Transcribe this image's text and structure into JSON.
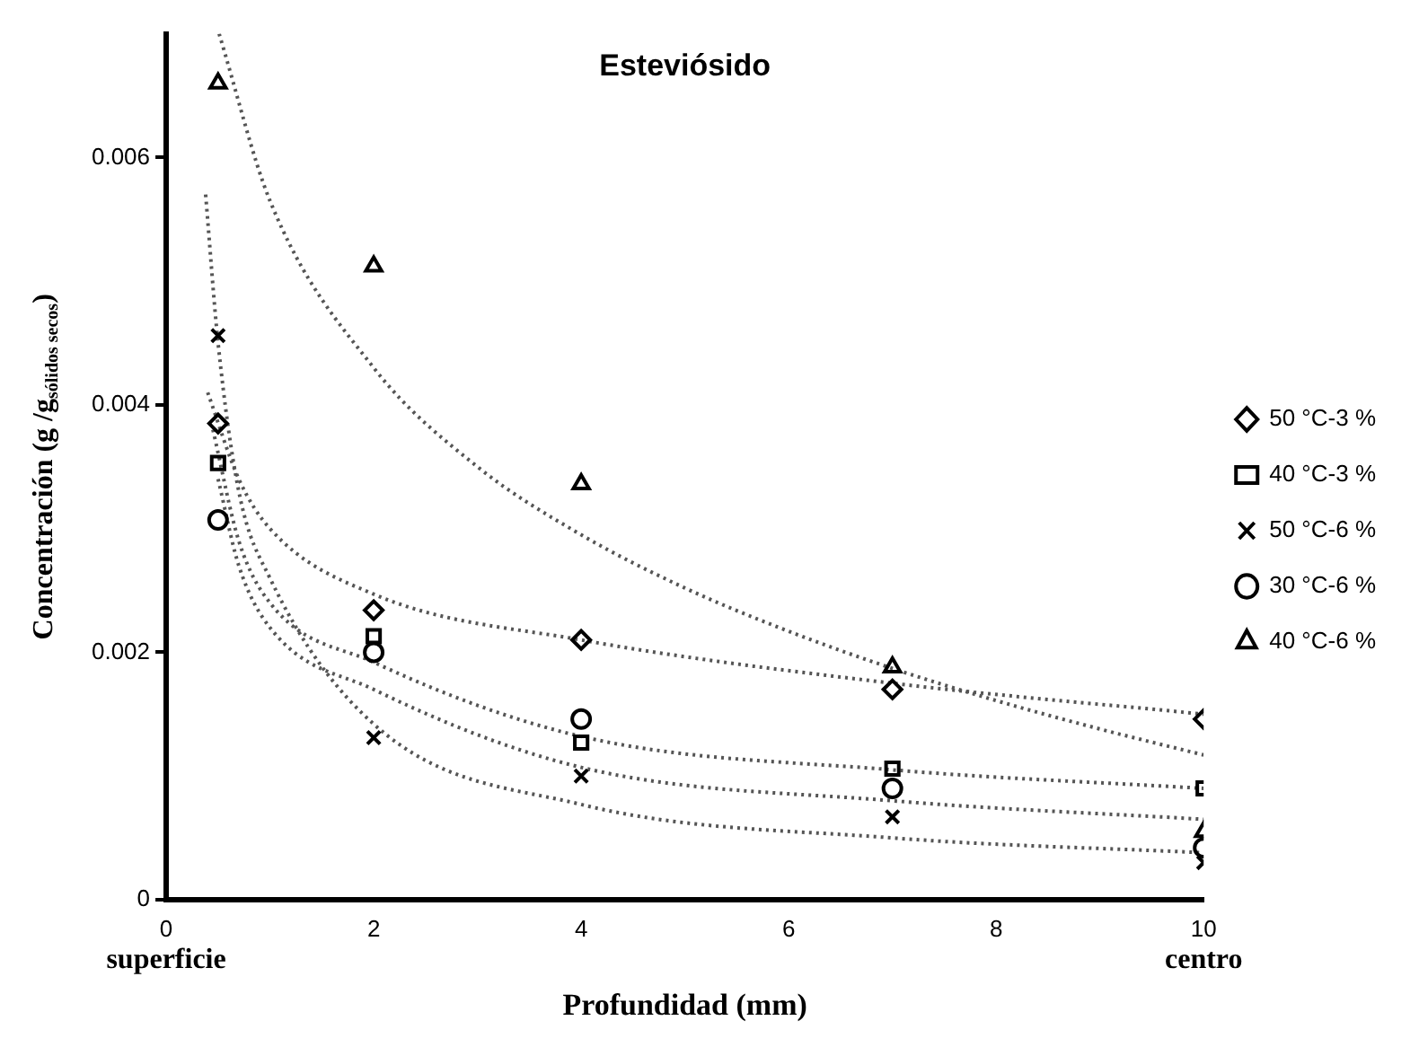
{
  "chart_data": {
    "type": "scatter",
    "title": "Esteviósido",
    "xlabel": "Profundidad (mm)",
    "ylabel": "Concentración (g /g$_{sólidos secos}$)",
    "xlim": [
      0,
      10
    ],
    "xticks": [
      0,
      2,
      4,
      6,
      8,
      10
    ],
    "ylim": [
      0,
      0.007
    ],
    "yticks": [
      0,
      0.002,
      0.004,
      0.006
    ],
    "grid": false,
    "legend": "right",
    "annotations": [
      "superficie",
      "centro"
    ],
    "series": [
      {
        "name": "50 °C-3 %",
        "marker": "diamond",
        "color": "#000000",
        "x": [
          0.5,
          2,
          4,
          7,
          10
        ],
        "values": [
          0.00385,
          0.00234,
          0.0021,
          0.0017,
          0.00146
        ]
      },
      {
        "name": "40 °C-3 %",
        "marker": "square",
        "color": "#000000",
        "x": [
          0.5,
          2,
          4,
          7,
          10
        ],
        "values": [
          0.00353,
          0.00213,
          0.00127,
          0.00106,
          0.0009
        ]
      },
      {
        "name": "50 °C-6 %",
        "marker": "cross",
        "color": "#000000",
        "x": [
          0.5,
          2,
          4,
          7,
          10
        ],
        "values": [
          0.00456,
          0.00131,
          0.001,
          0.00067,
          0.0003
        ]
      },
      {
        "name": "30 °C-6 %",
        "marker": "circle",
        "color": "#000000",
        "x": [
          0.5,
          2,
          4,
          7,
          10
        ],
        "values": [
          0.00307,
          0.002,
          0.00146,
          0.0009,
          0.00042
        ]
      },
      {
        "name": "40 °C-6 %",
        "marker": "triangle",
        "color": "#000000",
        "x": [
          0.5,
          2,
          4,
          7,
          10
        ],
        "values": [
          0.0066,
          0.00512,
          0.00336,
          0.00188,
          0.00055
        ]
      },
      {
        "type": "line",
        "marker": "none",
        "line_style": "dotted",
        "color": "#555555",
        "x": [
          0.4,
          0.7,
          1,
          2,
          4,
          7,
          10
        ],
        "values": [
          0.0041,
          0.0034,
          0.003,
          0.00247,
          0.0021,
          0.00175,
          0.0015
        ]
      },
      {
        "type": "line",
        "marker": "none",
        "line_style": "dotted",
        "color": "#555555",
        "x": [
          0.45,
          0.7,
          1,
          2,
          4,
          7,
          10
        ],
        "values": [
          0.0038,
          0.0029,
          0.0024,
          0.00192,
          0.00132,
          0.00105,
          0.0009
        ]
      },
      {
        "type": "line",
        "marker": "none",
        "line_style": "dotted",
        "color": "#555555",
        "x": [
          0.38,
          0.5,
          0.7,
          1,
          2,
          4,
          7,
          10
        ],
        "values": [
          0.0057,
          0.0045,
          0.0033,
          0.0026,
          0.00142,
          0.00077,
          0.0005,
          0.00038
        ]
      },
      {
        "type": "line",
        "marker": "none",
        "line_style": "dotted",
        "color": "#555555",
        "x": [
          0.5,
          0.7,
          1,
          2,
          4,
          7,
          10
        ],
        "values": [
          0.0034,
          0.0027,
          0.0022,
          0.0017,
          0.00107,
          0.0008,
          0.00065
        ]
      },
      {
        "type": "line",
        "marker": "none",
        "line_style": "dotted",
        "color": "#555555",
        "x": [
          0.51,
          1,
          2,
          3,
          4,
          5,
          6,
          7,
          8,
          9,
          10
        ],
        "values": [
          0.007,
          0.00565,
          0.0043,
          0.0035,
          0.00295,
          0.00252,
          0.00217,
          0.00187,
          0.00161,
          0.00138,
          0.00117
        ]
      }
    ]
  }
}
